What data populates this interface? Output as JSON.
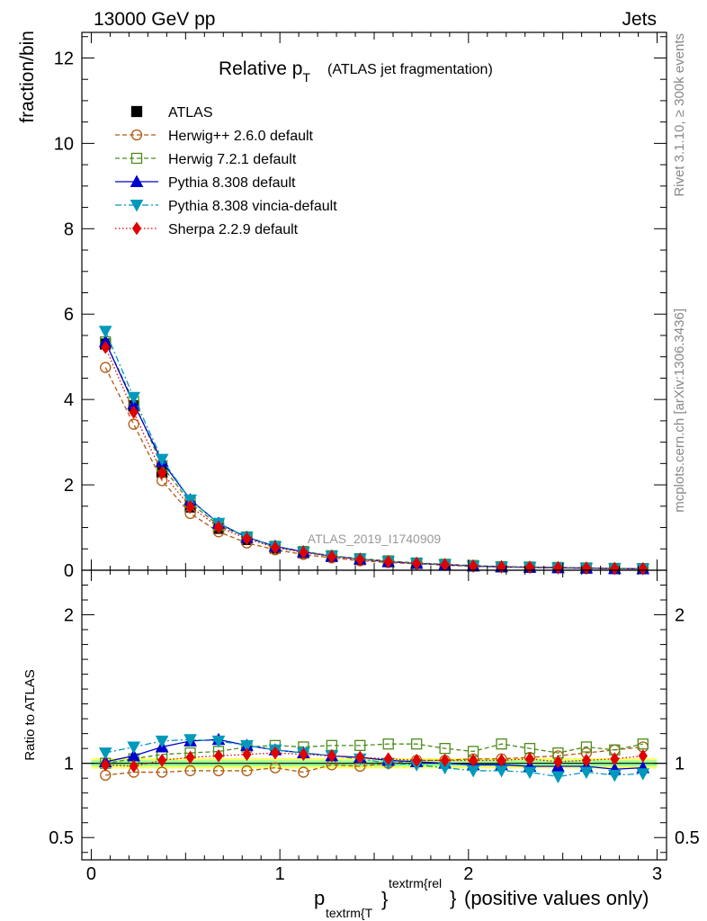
{
  "header": {
    "left": "13000 GeV pp",
    "right": "Jets"
  },
  "title": {
    "main": "Relative p",
    "sub": "T",
    "detail": "(ATLAS jet fragmentation)"
  },
  "side_labels": {
    "rivet": "Rivet 3.1.10, ≥ 300k events",
    "mcplots": "mcplots.cern.ch [arXiv:1306.3436]"
  },
  "watermark": "ATLAS_2019_I1740909",
  "xaxis": {
    "main": "p",
    "sub1": "textrm{T",
    "sup": "textrm{rel",
    "close": "}",
    "tail": "(positive values only)"
  },
  "colors": {
    "data": "#000000",
    "herwigpp": "#b05a10",
    "herwig7": "#4c8c1a",
    "pythia": "#0000cc",
    "vincia": "#0099bb",
    "sherpa": "#e00000",
    "band_outer": "#ffff66",
    "band_inner": "#99ff99"
  },
  "chart_data": {
    "type": "line",
    "x": [
      0.075,
      0.225,
      0.375,
      0.525,
      0.675,
      0.825,
      0.975,
      1.125,
      1.275,
      1.425,
      1.575,
      1.725,
      1.875,
      2.025,
      2.175,
      2.325,
      2.475,
      2.625,
      2.775,
      2.925
    ],
    "xlim": [
      -0.05,
      3.05
    ],
    "main_panel": {
      "ylabel": "fraction/bin",
      "ylim": [
        0,
        12.6
      ],
      "yticks": [
        0,
        2,
        4,
        6,
        8,
        10,
        12
      ],
      "series": [
        {
          "name": "ATLAS",
          "key": "data",
          "values": [
            5.3,
            3.85,
            2.3,
            1.48,
            0.98,
            0.72,
            0.52,
            0.41,
            0.32,
            0.25,
            0.2,
            0.16,
            0.13,
            0.1,
            0.08,
            0.07,
            0.06,
            0.05,
            0.04,
            0.035
          ]
        },
        {
          "name": "Herwig++ 2.6.0 default",
          "key": "herwigpp",
          "values": [
            4.75,
            3.42,
            2.1,
            1.33,
            0.9,
            0.64,
            0.48,
            0.37,
            0.29,
            0.22,
            0.18,
            0.15,
            0.12,
            0.09,
            0.075,
            0.065,
            0.055,
            0.047,
            0.038,
            0.033
          ]
        },
        {
          "name": "Herwig 7.2.1 default",
          "key": "herwig7",
          "values": [
            5.35,
            3.95,
            2.45,
            1.58,
            1.05,
            0.78,
            0.56,
            0.44,
            0.34,
            0.27,
            0.22,
            0.17,
            0.14,
            0.11,
            0.085,
            0.075,
            0.065,
            0.053,
            0.043,
            0.038
          ]
        },
        {
          "name": "Pythia 8.308 default",
          "key": "pythia",
          "values": [
            5.35,
            3.9,
            2.55,
            1.65,
            1.1,
            0.77,
            0.56,
            0.43,
            0.33,
            0.26,
            0.2,
            0.16,
            0.13,
            0.1,
            0.08,
            0.069,
            0.059,
            0.049,
            0.038,
            0.034
          ]
        },
        {
          "name": "Pythia 8.308 vincia-default",
          "key": "vincia",
          "values": [
            5.6,
            4.05,
            2.6,
            1.65,
            1.1,
            0.77,
            0.55,
            0.42,
            0.33,
            0.26,
            0.2,
            0.16,
            0.13,
            0.095,
            0.075,
            0.065,
            0.055,
            0.047,
            0.037,
            0.033
          ]
        },
        {
          "name": "Sherpa 2.2.9 default",
          "key": "sherpa",
          "values": [
            5.22,
            3.7,
            2.28,
            1.49,
            1.01,
            0.74,
            0.53,
            0.42,
            0.32,
            0.25,
            0.2,
            0.16,
            0.13,
            0.1,
            0.08,
            0.071,
            0.061,
            0.051,
            0.041,
            0.036
          ]
        }
      ]
    },
    "ratio_panel": {
      "ylabel": "Ratio to ATLAS",
      "ylim": [
        0.35,
        2.3
      ],
      "yticks": [
        0.5,
        1,
        2
      ],
      "band_outer": [
        0.965,
        1.035
      ],
      "band_inner": [
        0.98,
        1.02
      ],
      "series": [
        {
          "name": "Herwig++ 2.6.0 default",
          "key": "herwigpp",
          "values": [
            0.92,
            0.94,
            0.94,
            0.95,
            0.95,
            0.95,
            0.97,
            0.94,
            0.99,
            0.98,
            1.0,
            1.02,
            1.02,
            1.03,
            1.03,
            1.04,
            1.05,
            1.07,
            1.09,
            1.11
          ]
        },
        {
          "name": "Herwig 7.2.1 default",
          "key": "herwig7",
          "values": [
            1.0,
            1.03,
            1.06,
            1.07,
            1.08,
            1.11,
            1.12,
            1.11,
            1.12,
            1.12,
            1.13,
            1.13,
            1.1,
            1.08,
            1.13,
            1.1,
            1.07,
            1.11,
            1.09,
            1.13
          ]
        },
        {
          "name": "Pythia 8.308 default",
          "key": "pythia",
          "values": [
            1.01,
            1.05,
            1.11,
            1.15,
            1.16,
            1.12,
            1.09,
            1.07,
            1.05,
            1.04,
            1.02,
            1.01,
            1.0,
            0.99,
            0.99,
            0.98,
            0.98,
            0.98,
            0.96,
            0.97
          ]
        },
        {
          "name": "Pythia 8.308 vincia-default",
          "key": "vincia",
          "values": [
            1.07,
            1.11,
            1.15,
            1.16,
            1.15,
            1.12,
            1.09,
            1.07,
            1.05,
            1.03,
            1.0,
            0.99,
            0.97,
            0.95,
            0.95,
            0.94,
            0.91,
            0.94,
            0.92,
            0.93
          ]
        },
        {
          "name": "Sherpa 2.2.9 default",
          "key": "sherpa",
          "values": [
            0.99,
            0.98,
            1.02,
            1.04,
            1.05,
            1.06,
            1.07,
            1.06,
            1.05,
            1.04,
            1.03,
            1.02,
            1.02,
            1.02,
            1.02,
            1.03,
            1.01,
            1.02,
            1.03,
            1.05
          ]
        }
      ]
    },
    "xticks": [
      0,
      1,
      2,
      3
    ]
  }
}
